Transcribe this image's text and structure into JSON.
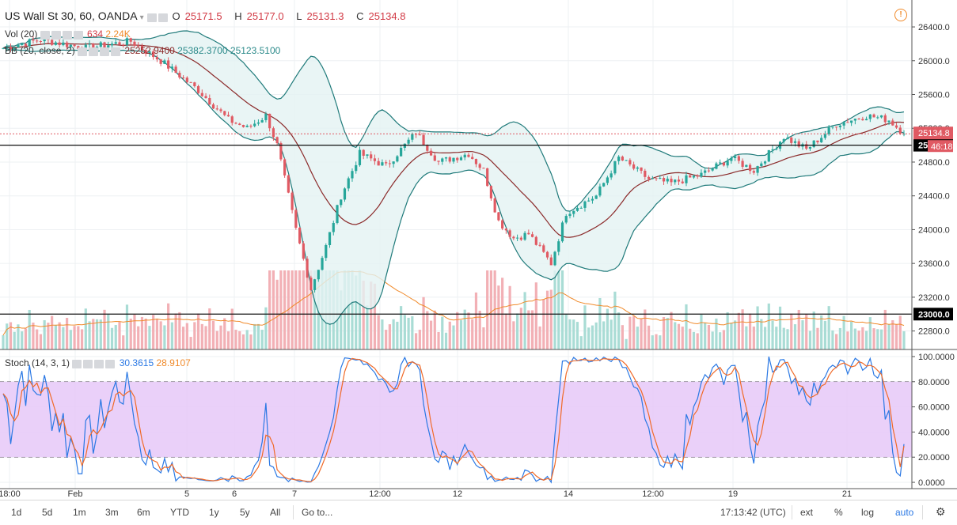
{
  "header": {
    "symbol": "US Wall St 30, 60, OANDA",
    "ohlc": {
      "o_label": "O",
      "o": "25171.5",
      "h_label": "H",
      "h": "25177.0",
      "l_label": "L",
      "l": "25131.3",
      "c_label": "C",
      "c": "25134.8"
    },
    "vol": {
      "label": "Vol (20)",
      "v1": "634",
      "v2": "2.24K"
    },
    "bb": {
      "label": "BB (20, close, 2)",
      "v1": "25252.9400",
      "v2": "25382.3700",
      "v3": "25123.5100"
    },
    "stoch": {
      "label": "Stoch (14, 3, 1)",
      "k": "30.3615",
      "d": "28.9107"
    }
  },
  "colors": {
    "up": "#26a69a",
    "down": "#e05a63",
    "bb_band": "#1f7a7a",
    "bb_mid": "#8b2a2a",
    "k_line": "#2a78e4",
    "d_line": "#f06a28",
    "stoch_fill": "#e6c8f8",
    "vol_ma": "#f08a2a"
  },
  "chart_data": [
    {
      "type": "candlestick",
      "yaxis_ticks": [
        "26400.0",
        "26000.0",
        "25600.0",
        "25200.0",
        "24800.0",
        "24400.0",
        "24000.0",
        "23600.0",
        "23200.0",
        "22800.0"
      ],
      "ylim": [
        22600,
        26700
      ],
      "price_label": "25134.8",
      "timer_label": "46:18",
      "hlines": [
        {
          "value": 25000,
          "label": "25000.0"
        },
        {
          "value": 23000,
          "label": "23000.0"
        }
      ],
      "xaxis_ticks": [
        "18:00",
        "Feb",
        "5",
        "6",
        "7",
        "12:00",
        "12",
        "14",
        "12:00",
        "19",
        "21"
      ],
      "path_points": [
        [
          0,
          26150
        ],
        [
          10,
          26250
        ],
        [
          22,
          26150
        ],
        [
          34,
          26230
        ],
        [
          42,
          26000
        ],
        [
          52,
          25650
        ],
        [
          60,
          25300
        ],
        [
          65,
          25200
        ],
        [
          70,
          25350
        ],
        [
          73,
          25000
        ],
        [
          78,
          24000
        ],
        [
          82,
          23300
        ],
        [
          86,
          23800
        ],
        [
          90,
          24400
        ],
        [
          95,
          24900
        ],
        [
          102,
          24750
        ],
        [
          110,
          25150
        ],
        [
          116,
          24800
        ],
        [
          124,
          24900
        ],
        [
          128,
          24700
        ],
        [
          132,
          24100
        ],
        [
          136,
          23900
        ],
        [
          140,
          23950
        ],
        [
          146,
          23600
        ],
        [
          150,
          24200
        ],
        [
          158,
          24400
        ],
        [
          164,
          24850
        ],
        [
          172,
          24600
        ],
        [
          178,
          24550
        ],
        [
          186,
          24650
        ],
        [
          194,
          24850
        ],
        [
          200,
          24700
        ],
        [
          208,
          25100
        ],
        [
          214,
          24950
        ],
        [
          222,
          25250
        ],
        [
          230,
          25350
        ],
        [
          236,
          25300
        ],
        [
          240,
          25134.8
        ]
      ]
    },
    {
      "type": "line",
      "title": "Stoch (14, 3, 1)",
      "yaxis_ticks": [
        "100.0000",
        "80.0000",
        "60.0000",
        "40.0000",
        "20.0000",
        "0.0000"
      ],
      "ylim": [
        -5,
        105
      ],
      "band": [
        20,
        80
      ]
    }
  ],
  "bottombar": {
    "periods": [
      "1d",
      "5d",
      "1m",
      "3m",
      "6m",
      "YTD",
      "1y",
      "5y",
      "All"
    ],
    "goto": "Go to...",
    "time": "17:13:42 (UTC)",
    "opts": [
      "ext",
      "%",
      "log",
      "auto"
    ]
  }
}
